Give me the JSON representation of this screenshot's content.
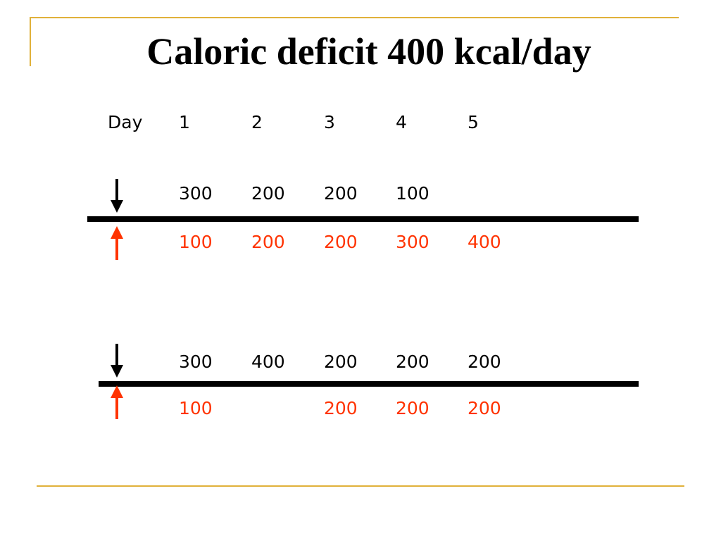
{
  "title": "Caloric deficit 400 kcal/day",
  "header": {
    "label": "Day",
    "days": [
      "1",
      "2",
      "3",
      "4",
      "5"
    ]
  },
  "scenarios": [
    {
      "down_values": [
        "300",
        "200",
        "200",
        "100",
        ""
      ],
      "up_values": [
        "100",
        "200",
        "200",
        "300",
        "400"
      ]
    },
    {
      "down_values": [
        "300",
        "400",
        "200",
        "200",
        "200"
      ],
      "up_values": [
        "100",
        "",
        "200",
        "200",
        "200"
      ]
    }
  ],
  "colors": {
    "down_text": "#000000",
    "up_text": "#ff3300",
    "frame": "#e0b13a",
    "down_arrow": "#000000",
    "up_arrow": "#ff3300"
  },
  "icons": {
    "down_arrow": "arrow-down-icon",
    "up_arrow": "arrow-up-icon"
  }
}
